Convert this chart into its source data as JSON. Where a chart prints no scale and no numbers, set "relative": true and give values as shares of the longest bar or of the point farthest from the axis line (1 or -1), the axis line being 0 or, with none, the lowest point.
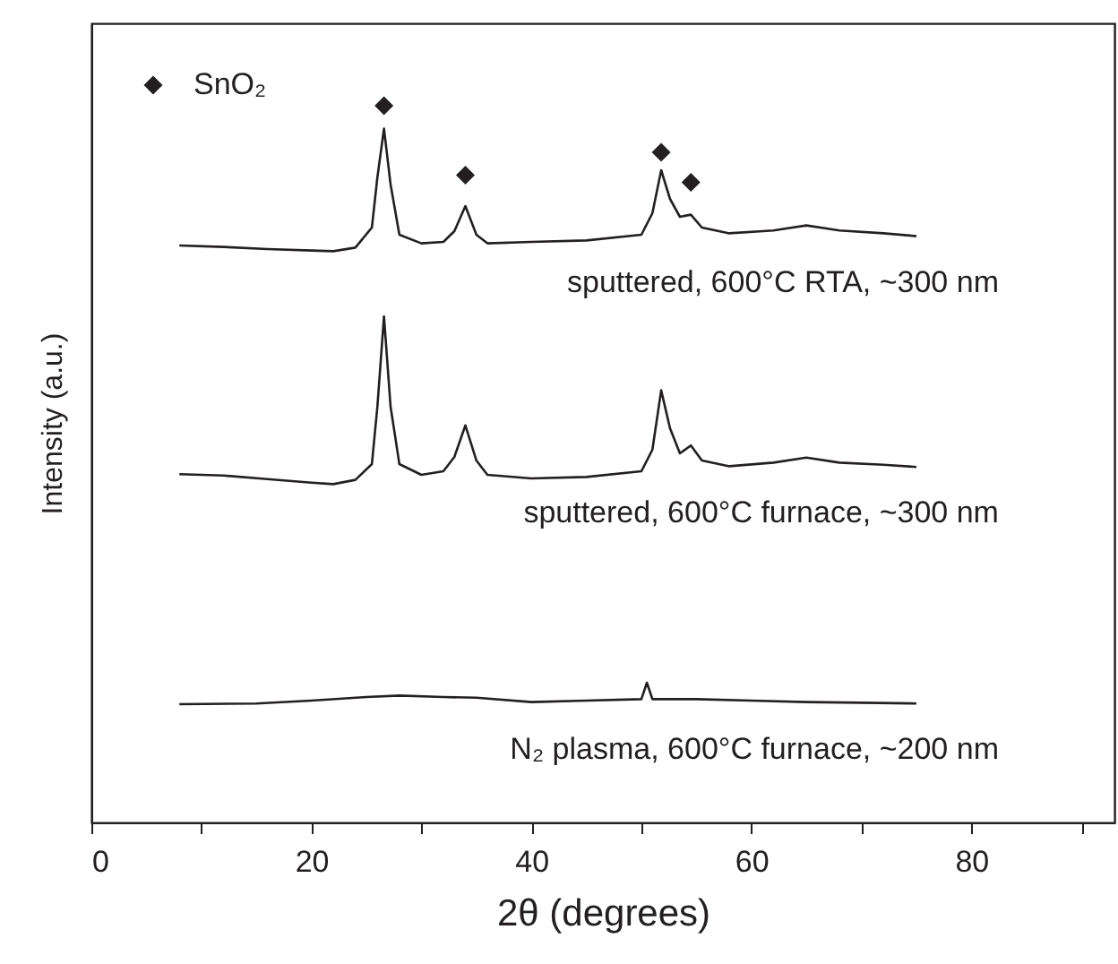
{
  "chart_data": {
    "type": "line",
    "xlabel": "2θ (degrees)",
    "ylabel": "Intensity (a.u.)",
    "relative": true,
    "xlim": [
      0,
      93
    ],
    "xticks": [
      0,
      {
        "value": 10,
        "label": null
      },
      20,
      {
        "value": 30,
        "label": null
      },
      40,
      {
        "value": 50,
        "label": null
      },
      60,
      {
        "value": 70,
        "label": null
      },
      80,
      {
        "value": 90,
        "label": null
      }
    ],
    "grid": false,
    "legend": "top left",
    "series": [
      {
        "name": "sputtered, 600°C RTA, ~300 nm",
        "color": "#231f20",
        "x": [
          8,
          12,
          16,
          20,
          22,
          24,
          25.5,
          26,
          26.6,
          27.2,
          28,
          30,
          32,
          33,
          34,
          35,
          36,
          40,
          45,
          50,
          51,
          51.8,
          52.6,
          53.5,
          54.5,
          55.5,
          58,
          62,
          65,
          68,
          72,
          75
        ],
        "values": [
          0.805,
          0.803,
          0.8,
          0.798,
          0.797,
          0.802,
          0.83,
          0.9,
          0.968,
          0.89,
          0.82,
          0.808,
          0.81,
          0.825,
          0.86,
          0.82,
          0.808,
          0.81,
          0.812,
          0.82,
          0.85,
          0.91,
          0.87,
          0.845,
          0.848,
          0.83,
          0.822,
          0.826,
          0.833,
          0.826,
          0.822,
          0.818
        ]
      },
      {
        "name": "sputtered, 600°C furnace, ~300 nm",
        "color": "#231f20",
        "x": [
          8,
          12,
          16,
          20,
          22,
          24,
          25.5,
          26,
          26.6,
          27.2,
          28,
          30,
          32,
          33,
          34,
          35,
          36,
          40,
          45,
          50,
          51,
          51.8,
          52.6,
          53.5,
          54.5,
          55.5,
          58,
          62,
          65,
          68,
          72,
          75
        ],
        "values": [
          0.486,
          0.484,
          0.479,
          0.474,
          0.472,
          0.478,
          0.5,
          0.58,
          0.706,
          0.58,
          0.5,
          0.485,
          0.49,
          0.51,
          0.554,
          0.505,
          0.485,
          0.48,
          0.482,
          0.49,
          0.52,
          0.603,
          0.55,
          0.515,
          0.526,
          0.505,
          0.497,
          0.502,
          0.509,
          0.502,
          0.499,
          0.496
        ]
      },
      {
        "name": "N₂ plasma, 600°C furnace, ~200 nm",
        "color": "#231f20",
        "x": [
          8,
          15,
          20,
          25,
          28,
          32,
          35,
          40,
          45,
          50,
          50.5,
          51,
          55,
          60,
          65,
          70,
          75
        ],
        "values": [
          0.165,
          0.166,
          0.17,
          0.175,
          0.177,
          0.175,
          0.174,
          0.168,
          0.17,
          0.172,
          0.195,
          0.172,
          0.172,
          0.17,
          0.168,
          0.167,
          0.166
        ]
      },
      {
        "name": "SnO₂",
        "type": "scatter",
        "marker": "diamond",
        "color": "#231f20",
        "x": [
          26.6,
          34,
          51.8,
          54.5
        ],
        "values": [
          1.0,
          0.903,
          0.935,
          0.893
        ]
      }
    ]
  }
}
